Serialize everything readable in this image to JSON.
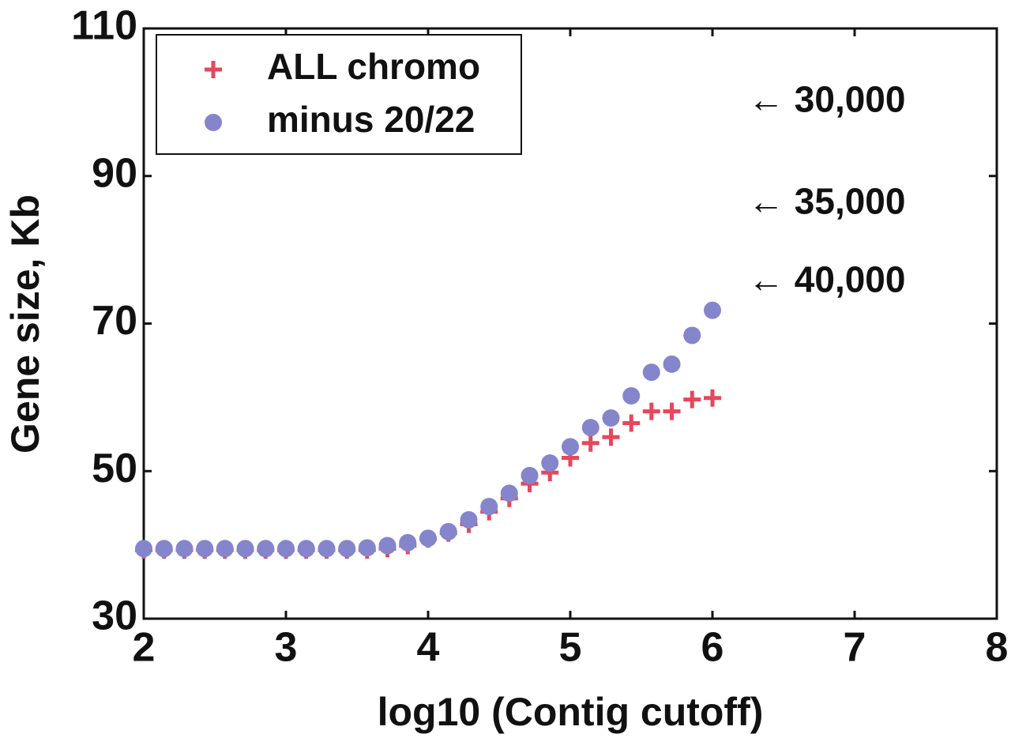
{
  "chart_data": {
    "type": "scatter",
    "x_label": "log10 (Contig cutoff)",
    "y_label": "Gene size, Kb",
    "xlim": [
      2,
      8
    ],
    "xticks": [
      2,
      3,
      4,
      5,
      6,
      7,
      8
    ],
    "ylim": [
      30,
      110
    ],
    "yticks": [
      30,
      50,
      70,
      90,
      110
    ],
    "x": [
      2,
      2.143,
      2.286,
      2.429,
      2.571,
      2.714,
      2.857,
      3,
      3.143,
      3.286,
      3.429,
      3.571,
      3.714,
      3.857,
      4,
      4.143,
      4.286,
      4.429,
      4.571,
      4.714,
      4.857,
      5,
      5.143,
      5.286,
      5.429,
      5.571,
      5.714,
      5.857,
      6
    ],
    "series": [
      {
        "name": "ALL chromo",
        "color": "#e8465a",
        "marker": "plus",
        "values": [
          39.3,
          39.3,
          39.3,
          39.3,
          39.3,
          39.3,
          39.3,
          39.3,
          39.3,
          39.3,
          39.3,
          39.3,
          39.5,
          39.9,
          40.8,
          41.6,
          42.8,
          44.5,
          46.3,
          48.3,
          49.8,
          51.8,
          53.8,
          54.6,
          56.5,
          58.1,
          58.1,
          59.7,
          59.9
        ]
      },
      {
        "name": "minus 20/22",
        "color": "#8585cc",
        "marker": "circle",
        "values": [
          39.5,
          39.5,
          39.5,
          39.5,
          39.5,
          39.5,
          39.5,
          39.5,
          39.5,
          39.5,
          39.5,
          39.6,
          39.9,
          40.3,
          40.9,
          41.8,
          43.4,
          45.2,
          47.0,
          49.4,
          51.1,
          53.3,
          55.9,
          57.2,
          60.2,
          63.4,
          64.5,
          68.4,
          71.8
        ]
      }
    ],
    "annotations": [
      {
        "text": "← 30,000",
        "x": 6.25,
        "y": 100
      },
      {
        "text": "← 35,000",
        "x": 6.25,
        "y": 86.2
      },
      {
        "text": "← 40,000",
        "x": 6.25,
        "y": 75.6
      }
    ],
    "legend": "upper left"
  }
}
